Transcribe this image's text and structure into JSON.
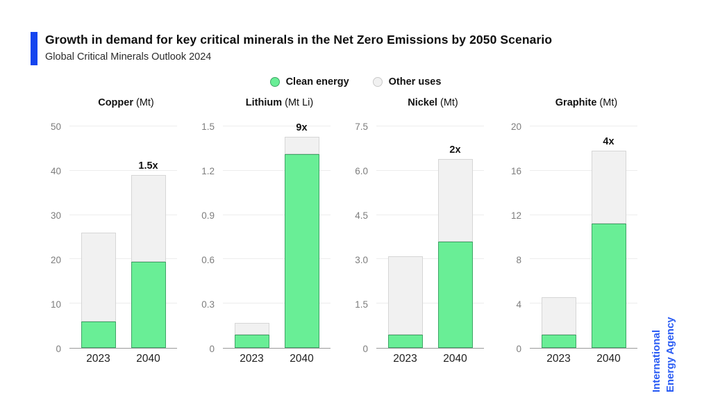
{
  "header": {
    "title": "Growth in demand for key critical minerals in the Net Zero Emissions by 2050 Scenario",
    "subtitle": "Global Critical Minerals Outlook 2024"
  },
  "legend": {
    "items": [
      {
        "label": "Clean energy",
        "swatch": "clean-energy-dot",
        "color": "#69ee96"
      },
      {
        "label": "Other uses",
        "swatch": "other-uses-dot",
        "color": "#f1f1f1"
      }
    ]
  },
  "footer": {
    "iea_line1": "International",
    "iea_line2": "Energy Agency"
  },
  "colors": {
    "accent": "#1545ef",
    "iea_blue": "#2a5cf4",
    "clean_energy": "#69ee96",
    "clean_energy_border": "#3fa566",
    "other_uses": "#f1f1f1",
    "other_uses_border": "#d6d6d6",
    "gridline": "#ededed",
    "baseline": "#999999",
    "y_tick_text": "#7d7d7d",
    "x_tick_text": "#1d1d1d"
  },
  "chart_data": [
    {
      "type": "bar",
      "title": "Copper",
      "unit": "(Mt)",
      "categories": [
        "2023",
        "2040"
      ],
      "series": [
        {
          "name": "Clean energy",
          "values": [
            6,
            19.5
          ]
        },
        {
          "name": "Other uses",
          "values": [
            20,
            19.5
          ]
        }
      ],
      "totals": [
        26,
        39
      ],
      "growth_labels": [
        "",
        "1.5x"
      ],
      "yticks": [
        "0",
        "10",
        "20",
        "30",
        "40",
        "50"
      ],
      "ylim": [
        0,
        50
      ],
      "grid": true,
      "legend_position": "top-center"
    },
    {
      "type": "bar",
      "title": "Lithium",
      "unit": "(Mt Li)",
      "categories": [
        "2023",
        "2040"
      ],
      "series": [
        {
          "name": "Clean energy",
          "values": [
            0.09,
            1.31
          ]
        },
        {
          "name": "Other uses",
          "values": [
            0.08,
            0.12
          ]
        }
      ],
      "totals": [
        0.17,
        1.43
      ],
      "growth_labels": [
        "",
        "9x"
      ],
      "yticks": [
        "0",
        "0.3",
        "0.6",
        "0.9",
        "1.2",
        "1.5"
      ],
      "ylim": [
        0,
        1.5
      ],
      "grid": true,
      "legend_position": "top-center"
    },
    {
      "type": "bar",
      "title": "Nickel",
      "unit": "(Mt)",
      "categories": [
        "2023",
        "2040"
      ],
      "series": [
        {
          "name": "Clean energy",
          "values": [
            0.45,
            3.6
          ]
        },
        {
          "name": "Other uses",
          "values": [
            2.65,
            2.8
          ]
        }
      ],
      "totals": [
        3.1,
        6.4
      ],
      "growth_labels": [
        "",
        "2x"
      ],
      "yticks": [
        "0",
        "1.5",
        "3.0",
        "4.5",
        "6.0",
        "7.5"
      ],
      "ylim": [
        0,
        7.5
      ],
      "grid": true,
      "legend_position": "top-center"
    },
    {
      "type": "bar",
      "title": "Graphite",
      "unit": "(Mt)",
      "categories": [
        "2023",
        "2040"
      ],
      "series": [
        {
          "name": "Clean energy",
          "values": [
            1.2,
            11.2
          ]
        },
        {
          "name": "Other uses",
          "values": [
            3.4,
            6.6
          ]
        }
      ],
      "totals": [
        4.6,
        17.8
      ],
      "growth_labels": [
        "",
        "4x"
      ],
      "yticks": [
        "0",
        "4",
        "8",
        "12",
        "16",
        "20"
      ],
      "ylim": [
        0,
        20
      ],
      "grid": true,
      "legend_position": "top-center"
    }
  ]
}
